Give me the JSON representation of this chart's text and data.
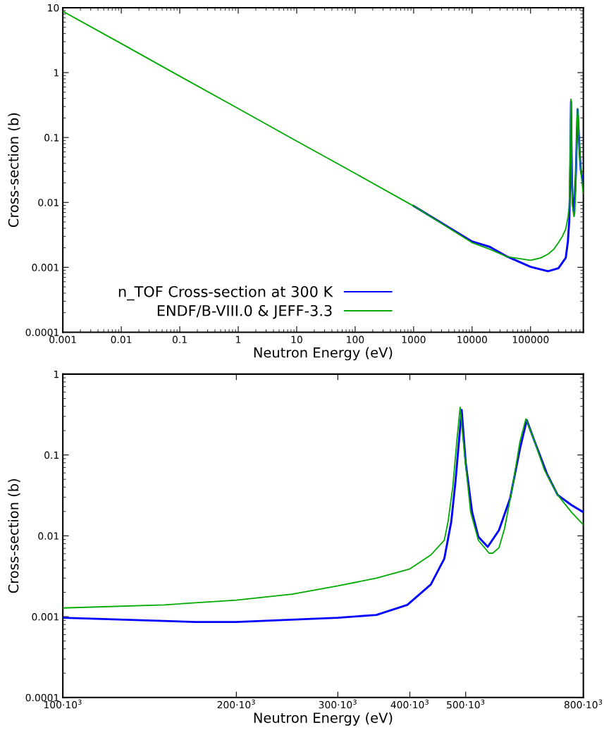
{
  "chart_data": [
    {
      "type": "line",
      "xlabel": "Neutron Energy (eV)",
      "ylabel": "Cross-section (b)",
      "log": "xy",
      "legend": "bottom left",
      "xlim": [
        0.001,
        800000
      ],
      "ylim": [
        0.0001,
        10
      ],
      "xticks": [
        0.001,
        0.01,
        0.1,
        1,
        10,
        100,
        1000,
        10000,
        100000
      ],
      "yticks": [
        0.0001,
        0.001,
        0.01,
        0.1,
        1,
        10
      ],
      "series": [
        {
          "name": "n_TOF Cross-section at 300 K",
          "color": "#0000ff",
          "x": [
            1000,
            10000,
            20000,
            40000,
            100000,
            200000,
            300000,
            400000,
            435000,
            459000,
            472000,
            480000,
            492000,
            500000,
            513000,
            526000,
            546000,
            571000,
            597000,
            621000,
            638000,
            661000,
            692000,
            722000,
            763000,
            800000
          ],
          "values": [
            0.0088,
            0.0025,
            0.00207,
            0.00146,
            0.00102,
            0.00087,
            0.00097,
            0.0014,
            0.0025,
            0.0052,
            0.015,
            0.047,
            0.36,
            0.08,
            0.0196,
            0.0097,
            0.0073,
            0.0117,
            0.029,
            0.119,
            0.27,
            0.137,
            0.058,
            0.032,
            0.024,
            0.0196
          ]
        },
        {
          "name": "ENDF/B-VIII.0 & JEFF-3.3",
          "color": "#00aa00",
          "x": [
            0.001,
            0.01,
            0.1,
            1,
            10,
            100,
            1000,
            10000,
            20000,
            40000,
            100000,
            150000,
            200000,
            250000,
            300000,
            350000,
            400000,
            435000,
            459000,
            466000,
            475000,
            483000,
            489000,
            498000,
            510000,
            526000,
            549000,
            557000,
            571000,
            584000,
            603000,
            621000,
            636000,
            656000,
            685000,
            722000,
            763000,
            800000
          ],
          "values": [
            8.8,
            2.8,
            0.88,
            0.28,
            0.088,
            0.028,
            0.0088,
            0.0024,
            0.0019,
            0.00145,
            0.00128,
            0.0014,
            0.0016,
            0.0019,
            0.0024,
            0.003,
            0.0039,
            0.0058,
            0.0088,
            0.015,
            0.041,
            0.158,
            0.39,
            0.098,
            0.0196,
            0.0088,
            0.0061,
            0.0061,
            0.0071,
            0.0123,
            0.041,
            0.146,
            0.28,
            0.158,
            0.065,
            0.032,
            0.0196,
            0.0137
          ]
        }
      ]
    },
    {
      "type": "line",
      "xlabel": "Neutron Energy (eV)",
      "ylabel": "Cross-section (b)",
      "log": "xy",
      "xlim": [
        100000,
        800000
      ],
      "ylim": [
        0.0001,
        1
      ],
      "xticks": [
        {
          "value": 100000,
          "label": "100·10$^{3}$"
        },
        {
          "value": 200000,
          "label": "200·10$^{3}$"
        },
        {
          "value": 300000,
          "label": "300·10$^{3}$"
        },
        {
          "value": 400000,
          "label": "400·10$^{3}$"
        },
        {
          "value": 500000,
          "label": "500·10$^{3}$"
        },
        {
          "value": 800000,
          "label": "800·10$^{3}$"
        }
      ],
      "yticks": [
        0.0001,
        0.001,
        0.01,
        0.1,
        1
      ],
      "series": [
        {
          "color": "#0000ff",
          "x": [
            100000,
            170000,
            200000,
            300000,
            350000,
            396000,
            435000,
            459000,
            472000,
            480000,
            492000,
            500000,
            513000,
            526000,
            546000,
            571000,
            597000,
            621000,
            638000,
            661000,
            692000,
            722000,
            763000,
            800000
          ],
          "values": [
            0.00097,
            0.00086,
            0.00086,
            0.00097,
            0.00105,
            0.0014,
            0.0025,
            0.0052,
            0.015,
            0.047,
            0.36,
            0.08,
            0.0196,
            0.0097,
            0.0073,
            0.0117,
            0.029,
            0.119,
            0.27,
            0.137,
            0.058,
            0.032,
            0.024,
            0.0196
          ]
        },
        {
          "color": "#00aa00",
          "x": [
            100000,
            150000,
            200000,
            250000,
            300000,
            350000,
            400000,
            435000,
            459000,
            466000,
            475000,
            483000,
            489000,
            498000,
            510000,
            526000,
            549000,
            557000,
            571000,
            584000,
            603000,
            621000,
            636000,
            656000,
            685000,
            722000,
            763000,
            800000
          ],
          "values": [
            0.00128,
            0.0014,
            0.0016,
            0.0019,
            0.0024,
            0.003,
            0.0039,
            0.0058,
            0.0088,
            0.015,
            0.041,
            0.158,
            0.39,
            0.098,
            0.0196,
            0.0088,
            0.0061,
            0.0061,
            0.0071,
            0.0123,
            0.041,
            0.146,
            0.28,
            0.158,
            0.065,
            0.032,
            0.0196,
            0.0137
          ]
        }
      ]
    }
  ]
}
